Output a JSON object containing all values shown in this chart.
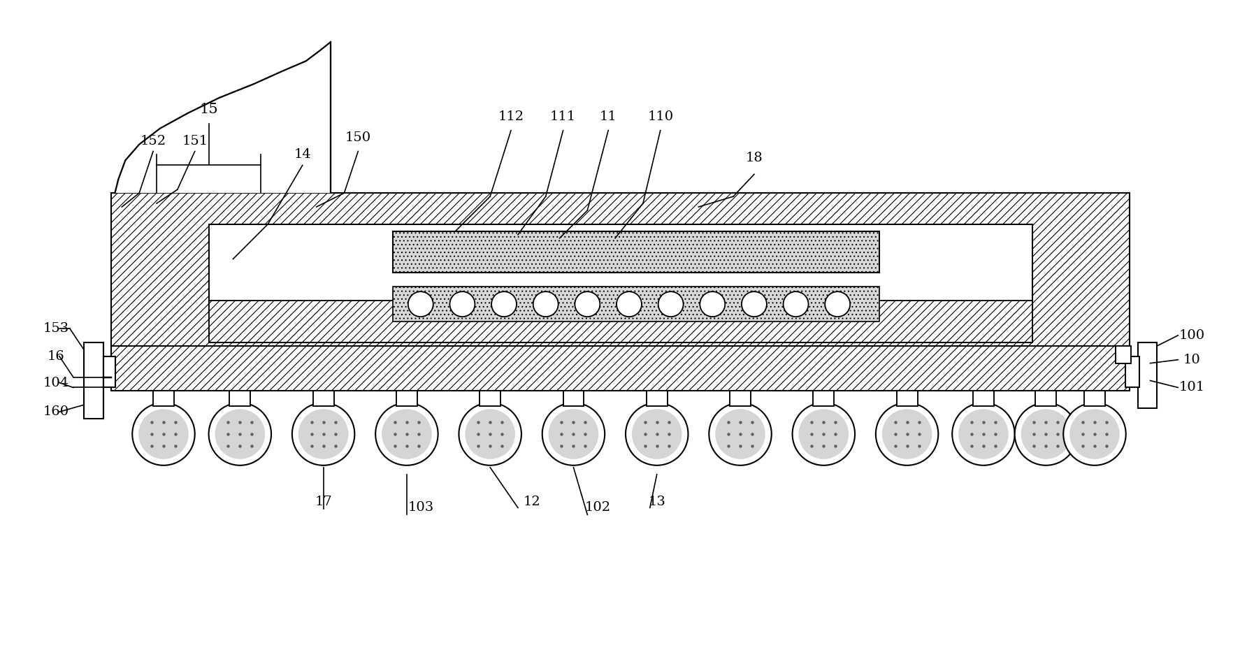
{
  "bg_color": "#ffffff",
  "line_color": "#000000",
  "fig_width": 17.94,
  "fig_height": 9.3,
  "lw": 1.5,
  "hatch_lw": 0.8
}
